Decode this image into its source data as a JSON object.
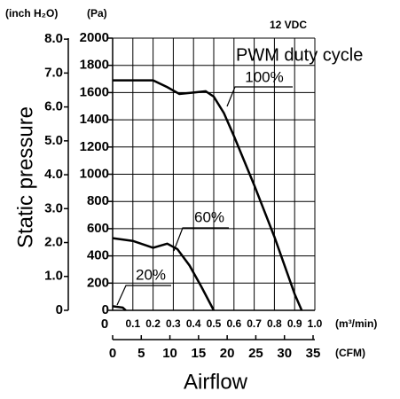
{
  "chart_data": {
    "type": "line",
    "annotation": "12 VDC",
    "legend_title": "PWM duty cycle",
    "xlabel": "Airflow",
    "ylabel": "Static pressure",
    "x_unit": "(m³/min)",
    "x2_unit": "(CFM)",
    "y_unit": "(Pa)",
    "y2_unit": "(inch H₂O)",
    "xlim": [
      0,
      1.0
    ],
    "xticks": [
      0,
      0.1,
      0.2,
      0.3,
      0.4,
      0.5,
      0.6,
      0.7,
      0.8,
      0.9,
      {
        "value": 1,
        "label": "1.0"
      }
    ],
    "x2lim": [
      0,
      35.31
    ],
    "x2ticks": [
      0,
      5,
      10,
      15,
      20,
      25,
      30,
      35
    ],
    "ylim": [
      0,
      2000
    ],
    "yticks": [
      0,
      200,
      400,
      600,
      800,
      1000,
      1200,
      1400,
      1600,
      1800,
      2000
    ],
    "y2lim": [
      0,
      8.03
    ],
    "y2ticks": [
      0,
      {
        "value": 1,
        "label": "1.0"
      },
      {
        "value": 2,
        "label": "2.0"
      },
      {
        "value": 3,
        "label": "3.0"
      },
      {
        "value": 4,
        "label": "4.0"
      },
      {
        "value": 5,
        "label": "5.0"
      },
      {
        "value": 6,
        "label": "6.0"
      },
      {
        "value": 7,
        "label": "7.0"
      },
      {
        "value": 8,
        "label": "8.0"
      }
    ],
    "grid": true,
    "series": [
      {
        "name": "100%",
        "color": "#000000",
        "x": [
          0,
          0.2,
          0.27,
          0.33,
          0.4,
          0.46,
          0.5,
          0.55,
          0.6,
          0.65,
          0.7,
          0.75,
          0.8,
          0.85,
          0.9,
          0.935
        ],
        "values": [
          1690,
          1690,
          1640,
          1590,
          1600,
          1610,
          1570,
          1450,
          1280,
          1100,
          920,
          730,
          540,
          330,
          120,
          0
        ]
      },
      {
        "name": "60%",
        "color": "#000000",
        "x": [
          0,
          0.1,
          0.2,
          0.27,
          0.32,
          0.38,
          0.44,
          0.5
        ],
        "values": [
          530,
          510,
          460,
          490,
          450,
          330,
          170,
          0
        ]
      },
      {
        "name": "20%",
        "color": "#000000",
        "x": [
          0,
          0.05,
          0.065
        ],
        "values": [
          30,
          20,
          0
        ]
      }
    ]
  }
}
